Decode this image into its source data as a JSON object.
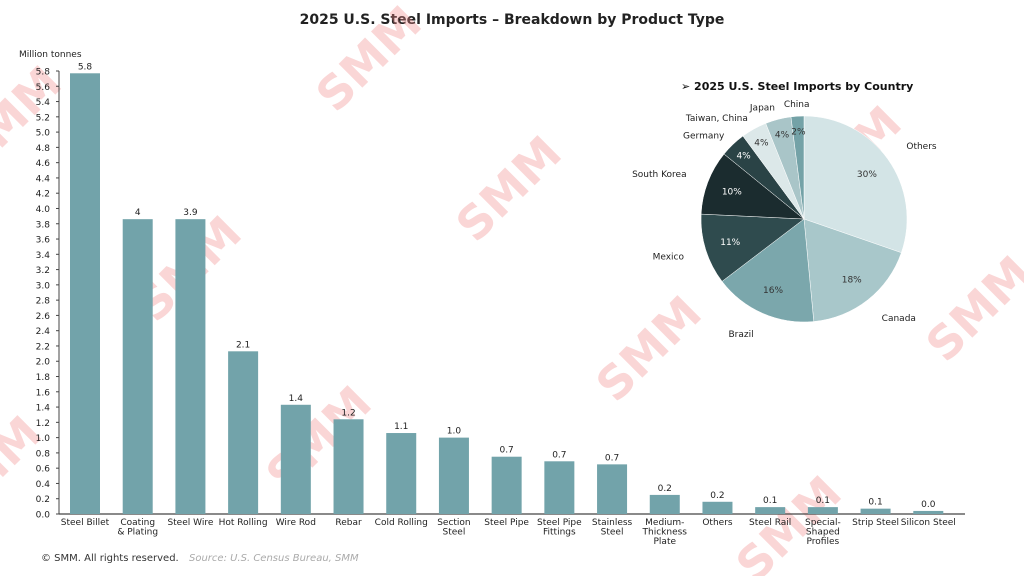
{
  "watermark": "SMM",
  "footer": {
    "copyright": "© SMM. All rights reserved.",
    "source": "Source: U.S. Census Bureau, SMM"
  },
  "chart_data": [
    {
      "type": "bar",
      "title": "2025 U.S. Steel Imports – Breakdown by Product Type",
      "ylabel": "Million tonnes",
      "xlabel": "",
      "ylim": [
        0,
        5.8
      ],
      "ytick_step": 0.2,
      "grid": false,
      "bar_color": "#72a3aa",
      "categories": [
        "Steel Billet",
        "Coating\n& Plating",
        "Steel Wire",
        "Hot Rolling",
        "Wire Rod",
        "Rebar",
        "Cold Rolling",
        "Section\nSteel",
        "Steel Pipe",
        "Steel Pipe\nFittings",
        "Stainless\nSteel",
        "Medium-\nThickness\nPlate",
        "Others",
        "Steel Rail",
        "Special-\nShaped\nProfiles",
        "Strip Steel",
        "Silicon Steel"
      ],
      "values": [
        5.77,
        3.86,
        3.86,
        2.13,
        1.43,
        1.24,
        1.06,
        1.0,
        0.75,
        0.69,
        0.65,
        0.25,
        0.16,
        0.09,
        0.09,
        0.07,
        0.04
      ],
      "data_labels": [
        "5.8",
        "4",
        "3.9",
        "2.1",
        "1.4",
        "1.2",
        "1.1",
        "1.0",
        "0.7",
        "0.7",
        "0.7",
        "0.2",
        "0.2",
        "0.1",
        "0.1",
        "0.1",
        "0.0"
      ]
    },
    {
      "type": "pie",
      "title": "2025 U.S. Steel Imports by Country",
      "title_bullet": "➢",
      "slices": [
        {
          "label": "Others",
          "value": 30,
          "pct": "30%",
          "color": "#d3e4e6",
          "pct_color": "#333"
        },
        {
          "label": "Canada",
          "value": 18,
          "pct": "18%",
          "color": "#a8c7ca",
          "pct_color": "#333"
        },
        {
          "label": "Brazil",
          "value": 16,
          "pct": "16%",
          "color": "#7ba7ac",
          "pct_color": "#333"
        },
        {
          "label": "Mexico",
          "value": 11,
          "pct": "11%",
          "color": "#2f4b4e",
          "pct_color": "#fff"
        },
        {
          "label": "South Korea",
          "value": 10,
          "pct": "10%",
          "color": "#1b2c2f",
          "pct_color": "#fff"
        },
        {
          "label": "Germany",
          "value": 4,
          "pct": "4%",
          "color": "#2a4346",
          "pct_color": "#fff"
        },
        {
          "label": "Taiwan, China",
          "value": 4,
          "pct": "4%",
          "color": "#dce8e9",
          "pct_color": "#333"
        },
        {
          "label": "Japan",
          "value": 4,
          "pct": "4%",
          "color": "#a9c5c8",
          "pct_color": "#333"
        },
        {
          "label": "China",
          "value": 2,
          "pct": "2%",
          "color": "#74a2a7",
          "pct_color": "#333"
        }
      ]
    }
  ]
}
